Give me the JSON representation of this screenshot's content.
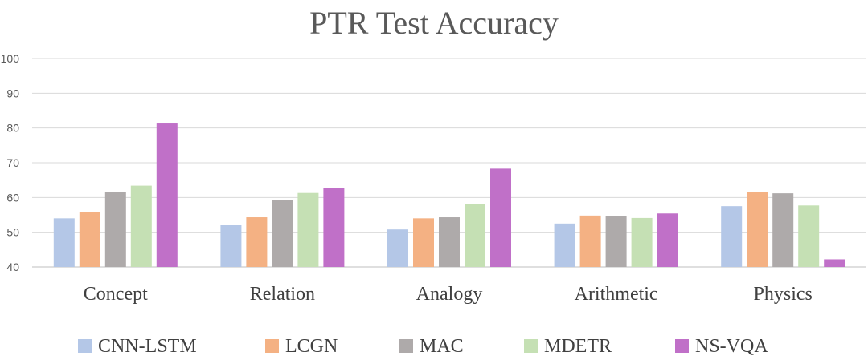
{
  "chart_data": {
    "type": "bar",
    "title": "PTR Test Accuracy",
    "xlabel": "",
    "ylabel": "",
    "ylim": [
      40,
      100
    ],
    "yticks": [
      "40",
      "50",
      "60",
      "70",
      "80",
      "90",
      "100"
    ],
    "grid": true,
    "legend_position": "bottom",
    "categories": [
      "Concept",
      "Relation",
      "Analogy",
      "Arithmetic",
      "Physics"
    ],
    "series": [
      {
        "name": "CNN-LSTM",
        "color": "#b4c7e7",
        "values": [
          54.0,
          52.0,
          50.8,
          52.5,
          57.5
        ]
      },
      {
        "name": "LCGN",
        "color": "#f4b183",
        "values": [
          55.8,
          54.3,
          54.0,
          54.8,
          61.5
        ]
      },
      {
        "name": "MAC",
        "color": "#aeaaaa",
        "values": [
          61.6,
          59.2,
          54.3,
          54.7,
          61.2
        ]
      },
      {
        "name": "MDETR",
        "color": "#c5e0b4",
        "values": [
          63.4,
          61.3,
          58.0,
          54.1,
          57.7
        ]
      },
      {
        "name": "NS-VQA",
        "color": "#c070c8",
        "values": [
          81.3,
          62.7,
          68.3,
          55.4,
          42.2
        ]
      }
    ]
  }
}
